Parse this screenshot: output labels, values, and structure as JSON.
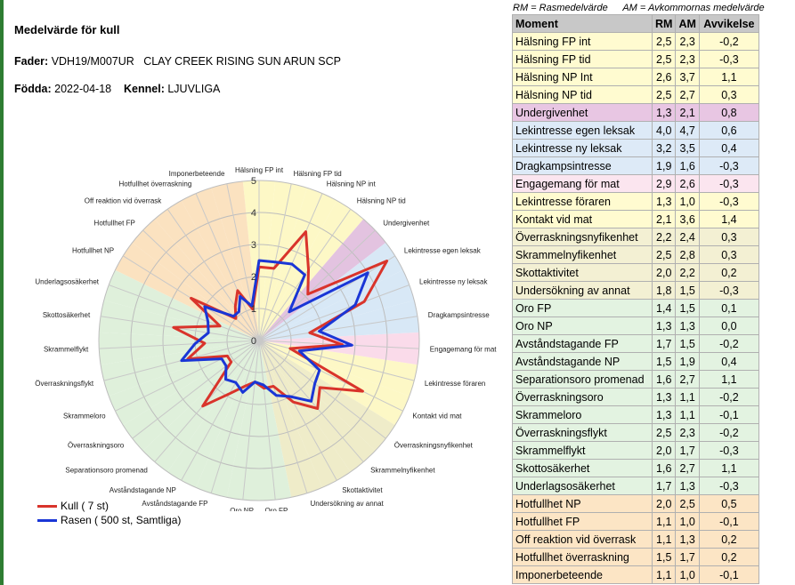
{
  "header": {
    "title": "Medelvärde för kull",
    "fader_label": "Fader:",
    "fader_value": "VDH19/M007UR   CLAY CREEK RISING SUN ARUN SCP",
    "fodda_label": "Födda:",
    "fodda_value": "2022-04-18",
    "kennel_label": "Kennel:",
    "kennel_value": "LJUVLIGA"
  },
  "legend": {
    "kull": "Kull ( 7 st)",
    "rasen": "Rasen ( 500 st, Samtliga)"
  },
  "abbrev": {
    "rm": "RM = Rasmedelvärde",
    "am": "AM = Avkommornas medelvärde"
  },
  "table": {
    "headers": [
      "Moment",
      "RM",
      "AM",
      "Avvikelse"
    ],
    "rows": [
      {
        "moment": "Hälsning FP int",
        "rm": "2,5",
        "am": "2,3",
        "avv": "-0,2",
        "group": "yellow"
      },
      {
        "moment": "Hälsning FP tid",
        "rm": "2,5",
        "am": "2,3",
        "avv": "-0,3",
        "group": "yellow"
      },
      {
        "moment": "Hälsning NP Int",
        "rm": "2,6",
        "am": "3,7",
        "avv": "1,1",
        "group": "yellow"
      },
      {
        "moment": "Hälsning NP tid",
        "rm": "2,5",
        "am": "2,7",
        "avv": "0,3",
        "group": "yellow"
      },
      {
        "moment": "Undergivenhet",
        "rm": "1,3",
        "am": "2,1",
        "avv": "0,8",
        "group": "purple"
      },
      {
        "moment": "Lekintresse egen leksak",
        "rm": "4,0",
        "am": "4,7",
        "avv": "0,6",
        "group": "blue"
      },
      {
        "moment": "Lekintresse ny leksak",
        "rm": "3,2",
        "am": "3,5",
        "avv": "0,4",
        "group": "blue"
      },
      {
        "moment": "Dragkampsintresse",
        "rm": "1,9",
        "am": "1,6",
        "avv": "-0,3",
        "group": "blue"
      },
      {
        "moment": "Engagemang för mat",
        "rm": "2,9",
        "am": "2,6",
        "avv": "-0,3",
        "group": "pink"
      },
      {
        "moment": "Lekintresse föraren",
        "rm": "1,3",
        "am": "1,0",
        "avv": "-0,3",
        "group": "yellow"
      },
      {
        "moment": "Kontakt vid mat",
        "rm": "2,1",
        "am": "3,6",
        "avv": "1,4",
        "group": "yellow"
      },
      {
        "moment": "Överraskningsnyfikenhet",
        "rm": "2,2",
        "am": "2,4",
        "avv": "0,3",
        "group": "olive"
      },
      {
        "moment": "Skrammelnyfikenhet",
        "rm": "2,5",
        "am": "2,8",
        "avv": "0,3",
        "group": "olive"
      },
      {
        "moment": "Skottaktivitet",
        "rm": "2,0",
        "am": "2,2",
        "avv": "0,2",
        "group": "olive"
      },
      {
        "moment": "Undersökning av annat",
        "rm": "1,8",
        "am": "1,5",
        "avv": "-0,3",
        "group": "olive"
      },
      {
        "moment": "Oro FP",
        "rm": "1,4",
        "am": "1,5",
        "avv": "0,1",
        "group": "green"
      },
      {
        "moment": "Oro NP",
        "rm": "1,3",
        "am": "1,3",
        "avv": "0,0",
        "group": "green"
      },
      {
        "moment": "Avståndstagande FP",
        "rm": "1,7",
        "am": "1,5",
        "avv": "-0,2",
        "group": "green"
      },
      {
        "moment": "Avståndstagande NP",
        "rm": "1,5",
        "am": "1,9",
        "avv": "0,4",
        "group": "green"
      },
      {
        "moment": "Separationsoro promenad",
        "rm": "1,6",
        "am": "2,7",
        "avv": "1,1",
        "group": "green"
      },
      {
        "moment": "Överraskningsoro",
        "rm": "1,3",
        "am": "1,1",
        "avv": "-0,2",
        "group": "green"
      },
      {
        "moment": "Skrammeloro",
        "rm": "1,3",
        "am": "1,1",
        "avv": "-0,1",
        "group": "green"
      },
      {
        "moment": "Överraskningsflykt",
        "rm": "2,5",
        "am": "2,3",
        "avv": "-0,2",
        "group": "green"
      },
      {
        "moment": "Skrammelflykt",
        "rm": "2,0",
        "am": "1,7",
        "avv": "-0,3",
        "group": "green"
      },
      {
        "moment": "Skottosäkerhet",
        "rm": "1,6",
        "am": "2,7",
        "avv": "1,1",
        "group": "green"
      },
      {
        "moment": "Underlagsosäkerhet",
        "rm": "1,7",
        "am": "1,3",
        "avv": "-0,3",
        "group": "green"
      },
      {
        "moment": "Hotfullhet NP",
        "rm": "2,0",
        "am": "2,5",
        "avv": "0,5",
        "group": "orange"
      },
      {
        "moment": "Hotfullhet FP",
        "rm": "1,1",
        "am": "1,0",
        "avv": "-0,1",
        "group": "orange"
      },
      {
        "moment": "Off reaktion vid överrask",
        "rm": "1,1",
        "am": "1,3",
        "avv": "0,2",
        "group": "orange"
      },
      {
        "moment": "Hotfullhet överraskning",
        "rm": "1,5",
        "am": "1,7",
        "avv": "0,2",
        "group": "orange"
      },
      {
        "moment": "Imponerbeteende",
        "rm": "1,1",
        "am": "1,0",
        "avv": "-0,1",
        "group": "orange"
      }
    ]
  },
  "chart_data": {
    "type": "radar",
    "rlim": [
      0,
      5
    ],
    "r_ticks": [
      "0",
      "1",
      "2",
      "3",
      "4",
      "5"
    ],
    "categories": [
      "Hälsning FP int",
      "Hälsning FP tid",
      "Hälsning NP int",
      "Hälsning NP tid",
      "Undergivenhet",
      "Lekintresse egen leksak",
      "Lekintresse ny leksak",
      "Dragkampsintresse",
      "Engagemang för mat",
      "Lekintresse föraren",
      "Kontakt vid mat",
      "Överraskningsnyfikenhet",
      "Skrammelnyfikenhet",
      "Skottaktivitet",
      "Undersökning av annat",
      "Oro FP",
      "Oro NP",
      "Avståndstagande FP",
      "Avståndstagande NP",
      "Separationsoro promenad",
      "Överraskningsoro",
      "Skrammeloro",
      "Överraskningsflykt",
      "Skrammelflykt",
      "Skottosäkerhet",
      "Underlagsosäkerhet",
      "Hotfullhet NP",
      "Hotfullhet FP",
      "Off reaktion vid överrask",
      "Hotfullhet överraskning",
      "Imponerbeteende"
    ],
    "groups": [
      "yellow",
      "yellow",
      "yellow",
      "yellow",
      "purple",
      "blue",
      "blue",
      "blue",
      "pink",
      "yellow",
      "yellow",
      "olive",
      "olive",
      "olive",
      "olive",
      "green",
      "green",
      "green",
      "green",
      "green",
      "green",
      "green",
      "green",
      "green",
      "green",
      "green",
      "orange",
      "orange",
      "orange",
      "orange",
      "orange"
    ],
    "group_colors": {
      "yellow": "#fdf8c6",
      "purple": "#e3c3e0",
      "blue": "#d8e8f6",
      "pink": "#fadbea",
      "olive": "#efecc9",
      "green": "#dff0db",
      "orange": "#fbe2c0"
    },
    "series": [
      {
        "name": "Kull ( 7 st)",
        "color": "#d9342b",
        "values": [
          2.3,
          2.3,
          3.7,
          2.7,
          2.1,
          4.7,
          3.5,
          1.6,
          2.6,
          1.0,
          3.6,
          2.4,
          2.8,
          2.2,
          1.5,
          1.5,
          1.3,
          1.5,
          1.9,
          2.7,
          1.1,
          1.1,
          2.3,
          1.7,
          2.7,
          1.3,
          2.5,
          1.0,
          1.3,
          1.7,
          1.0
        ]
      },
      {
        "name": "Rasen ( 500 st, Samtliga)",
        "color": "#1a36d6",
        "values": [
          2.5,
          2.5,
          2.6,
          2.5,
          1.3,
          4.0,
          3.2,
          1.9,
          2.9,
          1.3,
          2.1,
          2.2,
          2.5,
          2.0,
          1.8,
          1.4,
          1.3,
          1.7,
          1.5,
          1.6,
          1.3,
          1.3,
          2.5,
          2.0,
          1.6,
          1.7,
          2.0,
          1.1,
          1.1,
          1.5,
          1.1
        ]
      }
    ],
    "axis_labels": [
      "Hälsning FP int",
      "Hälsning FP tid",
      "Hälsning NP int",
      "Hälsning NP tid",
      "Undergivenhet",
      "Lekintresse egen leksak",
      "Lekintresse ny leksak",
      "Dragkampsintresse",
      "Engagemang för mat",
      "Lekintresse föraren",
      "Kontakt vid mat",
      "Överraskningsnyfikenhet",
      "Skrammelnyfikenhet",
      "Skottaktivitet",
      "Undersökning av annat",
      "Oro FP",
      "Oro NP",
      "Avståndstagande FP",
      "Avståndstagande NP",
      "Separationsoro promenad",
      "Överraskningsoro",
      "Skrammeloro",
      "Överraskningsflykt",
      "Skrammelflykt",
      "Skottosäkerhet",
      "Underlagsosäkerhet",
      "Hotfullhet NP",
      "Hotfullhet FP",
      "Off reaktion vid överrask",
      "Hotfullhet överraskning",
      "Imponerbeteende"
    ]
  }
}
